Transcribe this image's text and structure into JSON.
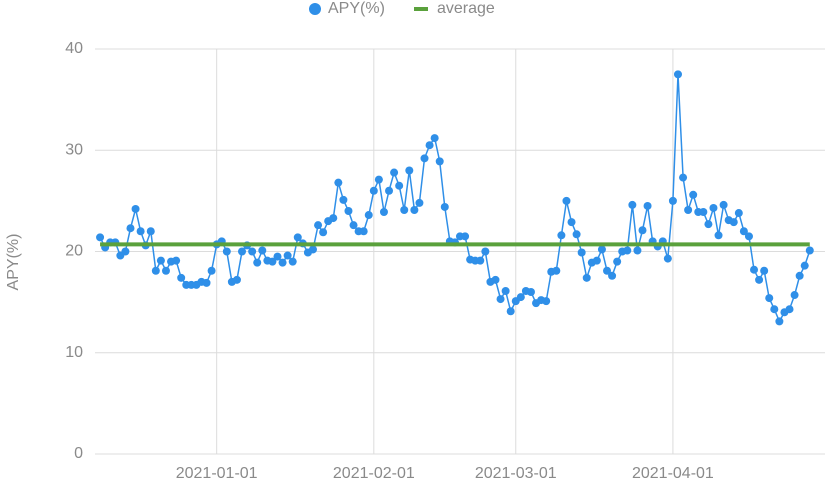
{
  "chart_data": {
    "type": "line-scatter",
    "y_label": "APY(%)",
    "legend": "top",
    "grid": true,
    "xlim": [
      "2020-12-08",
      "2021-05-01"
    ],
    "xticks": [
      "2021-01-01",
      "2021-02-01",
      "2021-03-01",
      "2021-04-01"
    ],
    "ylim": [
      0,
      40
    ],
    "yticks": [
      0,
      10,
      20,
      30,
      40
    ],
    "x": [
      "2020-12-09",
      "2020-12-10",
      "2020-12-11",
      "2020-12-12",
      "2020-12-13",
      "2020-12-14",
      "2020-12-15",
      "2020-12-16",
      "2020-12-17",
      "2020-12-18",
      "2020-12-19",
      "2020-12-20",
      "2020-12-21",
      "2020-12-22",
      "2020-12-23",
      "2020-12-24",
      "2020-12-25",
      "2020-12-26",
      "2020-12-27",
      "2020-12-28",
      "2020-12-29",
      "2020-12-30",
      "2020-12-31",
      "2021-01-01",
      "2021-01-02",
      "2021-01-03",
      "2021-01-04",
      "2021-01-05",
      "2021-01-06",
      "2021-01-07",
      "2021-01-08",
      "2021-01-09",
      "2021-01-10",
      "2021-01-11",
      "2021-01-12",
      "2021-01-13",
      "2021-01-14",
      "2021-01-15",
      "2021-01-16",
      "2021-01-17",
      "2021-01-18",
      "2021-01-19",
      "2021-01-20",
      "2021-01-21",
      "2021-01-22",
      "2021-01-23",
      "2021-01-24",
      "2021-01-25",
      "2021-01-26",
      "2021-01-27",
      "2021-01-28",
      "2021-01-29",
      "2021-01-30",
      "2021-01-31",
      "2021-02-01",
      "2021-02-02",
      "2021-02-03",
      "2021-02-04",
      "2021-02-05",
      "2021-02-06",
      "2021-02-07",
      "2021-02-08",
      "2021-02-09",
      "2021-02-10",
      "2021-02-11",
      "2021-02-12",
      "2021-02-13",
      "2021-02-14",
      "2021-02-15",
      "2021-02-16",
      "2021-02-17",
      "2021-02-18",
      "2021-02-19",
      "2021-02-20",
      "2021-02-21",
      "2021-02-22",
      "2021-02-23",
      "2021-02-24",
      "2021-02-25",
      "2021-02-26",
      "2021-02-27",
      "2021-02-28",
      "2021-03-01",
      "2021-03-02",
      "2021-03-03",
      "2021-03-04",
      "2021-03-05",
      "2021-03-06",
      "2021-03-07",
      "2021-03-08",
      "2021-03-09",
      "2021-03-10",
      "2021-03-11",
      "2021-03-12",
      "2021-03-13",
      "2021-03-14",
      "2021-03-15",
      "2021-03-16",
      "2021-03-17",
      "2021-03-18",
      "2021-03-19",
      "2021-03-20",
      "2021-03-21",
      "2021-03-22",
      "2021-03-23",
      "2021-03-24",
      "2021-03-25",
      "2021-03-26",
      "2021-03-27",
      "2021-03-28",
      "2021-03-29",
      "2021-03-30",
      "2021-03-31",
      "2021-04-01",
      "2021-04-02",
      "2021-04-03",
      "2021-04-04",
      "2021-04-05",
      "2021-04-06",
      "2021-04-07",
      "2021-04-08",
      "2021-04-09",
      "2021-04-10",
      "2021-04-11",
      "2021-04-12",
      "2021-04-13",
      "2021-04-14",
      "2021-04-15",
      "2021-04-16",
      "2021-04-17",
      "2021-04-18",
      "2021-04-19",
      "2021-04-20",
      "2021-04-21",
      "2021-04-22",
      "2021-04-23",
      "2021-04-24",
      "2021-04-25",
      "2021-04-26",
      "2021-04-27",
      "2021-04-28"
    ],
    "series": [
      {
        "name": "APY(%)",
        "color": "#2f8fe8",
        "values": [
          21.4,
          20.4,
          20.9,
          20.9,
          19.6,
          20.0,
          22.3,
          24.2,
          22.0,
          20.6,
          22.0,
          18.1,
          19.1,
          18.1,
          19.0,
          19.1,
          17.4,
          16.7,
          16.7,
          16.7,
          17.0,
          16.9,
          18.1,
          20.7,
          21.0,
          20.0,
          17.0,
          17.2,
          20.0,
          20.6,
          20.0,
          18.9,
          20.1,
          19.1,
          19.0,
          19.5,
          18.9,
          19.6,
          19.0,
          21.4,
          20.8,
          19.9,
          20.2,
          22.6,
          21.9,
          23.0,
          23.3,
          26.8,
          25.1,
          24.0,
          22.6,
          22.0,
          22.0,
          23.6,
          26.0,
          27.1,
          23.9,
          26.0,
          27.8,
          26.5,
          24.1,
          28.0,
          24.1,
          24.8,
          29.2,
          30.5,
          31.2,
          28.9,
          24.4,
          21.0,
          20.9,
          21.5,
          21.5,
          19.2,
          19.1,
          19.1,
          20.0,
          17.0,
          17.2,
          15.3,
          16.1,
          14.1,
          15.1,
          15.5,
          16.1,
          16.0,
          14.9,
          15.2,
          15.1,
          18.0,
          18.1,
          21.6,
          25.0,
          22.9,
          21.7,
          19.9,
          17.4,
          18.9,
          19.1,
          20.2,
          18.1,
          17.6,
          19.0,
          20.0,
          20.1,
          24.6,
          20.1,
          22.1,
          24.5,
          21.0,
          20.5,
          21.0,
          19.3,
          25.0,
          37.5,
          27.3,
          24.1,
          25.6,
          23.9,
          23.9,
          22.7,
          24.3,
          21.6,
          24.6,
          23.1,
          22.9,
          23.8,
          22.0,
          21.5,
          18.2,
          17.2,
          18.1,
          15.4,
          14.3,
          13.1,
          14.0,
          14.3,
          15.7,
          17.6,
          18.6,
          20.1
        ]
      },
      {
        "name": "average",
        "color": "#5aa13c",
        "value": 20.7
      }
    ]
  }
}
